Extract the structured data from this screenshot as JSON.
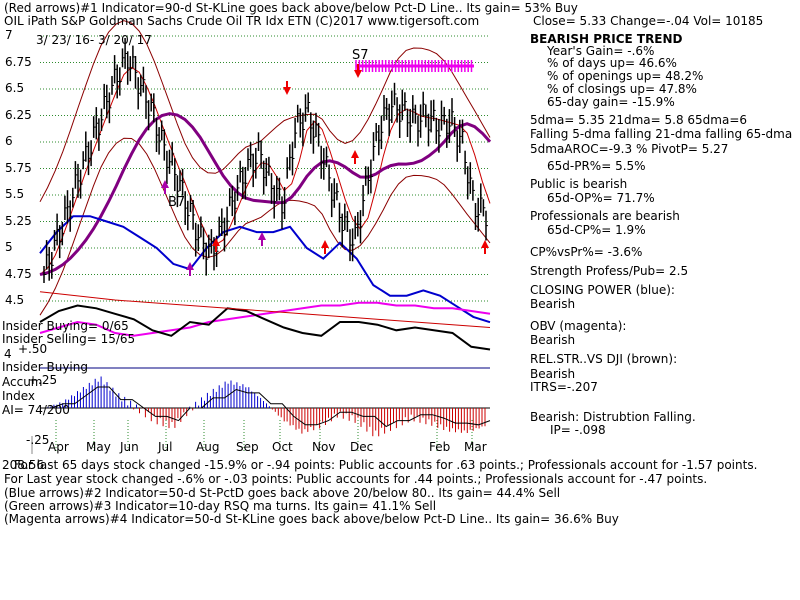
{
  "header": {
    "line1": "(Red arrows)#1 Indicator=90-d St-KLine goes back above/below Pct-D Line.. Its gain= 53% Buy",
    "line2_left": "OIL    iPath S&P Goldman Sachs Crude Oil TR Idx ETN  (C)2017 www.tigersoft.com",
    "line2_right": "Close=  5.33  Change=-.04 Vol= 10185",
    "date_range": "3/ 23/ 16-  3/ 20/ 17"
  },
  "chart_data": {
    "type": "line",
    "title": "OIL    iPath S&P Goldman Sachs Crude Oil TR Idx ETN",
    "ylim": [
      4.3,
      7.05
    ],
    "y_ticks": [
      {
        "label": "7",
        "value": 7.0
      },
      {
        "label": "6.75",
        "value": 6.75
      },
      {
        "label": "6.5",
        "value": 6.5
      },
      {
        "label": "6.25",
        "value": 6.25
      },
      {
        "label": "6",
        "value": 6.0
      },
      {
        "label": "5.75",
        "value": 5.75
      },
      {
        "label": "5.5",
        "value": 5.5
      },
      {
        "label": "5.25",
        "value": 5.25
      },
      {
        "label": "5",
        "value": 5.0
      },
      {
        "label": "4.75",
        "value": 4.75
      },
      {
        "label": "4.5",
        "value": 4.5
      }
    ],
    "x_labels": [
      "Apr",
      "May",
      "Jun",
      "Jul",
      "Aug",
      "Sep",
      "Oct",
      "Nov",
      "Dec",
      "Feb",
      "Mar"
    ],
    "close_series": [
      4.75,
      5.05,
      5.35,
      5.7,
      6.0,
      6.3,
      6.6,
      6.8,
      6.55,
      6.3,
      5.95,
      5.7,
      5.4,
      5.1,
      4.95,
      5.2,
      5.5,
      5.75,
      5.9,
      5.6,
      5.4,
      6.1,
      6.3,
      6.0,
      5.6,
      5.25,
      5.05,
      5.6,
      6.1,
      6.35,
      6.3,
      6.2,
      6.25,
      6.15,
      6.2,
      6.0,
      5.4,
      5.33
    ],
    "closing_power": [
      4.95,
      5.15,
      5.3,
      5.3,
      5.25,
      5.2,
      5.1,
      5.0,
      4.85,
      4.8,
      5.0,
      5.15,
      5.2,
      5.15,
      5.15,
      5.2,
      5.0,
      4.9,
      5.05,
      4.9,
      4.65,
      4.55,
      4.55,
      4.6,
      4.55,
      4.45,
      4.35,
      4.3
    ],
    "obv": [
      4.0,
      4.1,
      4.2,
      4.15,
      4.0,
      3.95,
      4.0,
      4.05,
      4.1,
      4.2,
      4.25,
      4.3,
      4.35,
      4.4,
      4.45,
      4.5,
      4.5,
      4.55,
      4.55,
      4.5,
      4.5,
      4.45,
      4.45,
      4.4,
      4.35
    ],
    "relative_strength": [
      4.2,
      4.4,
      4.5,
      4.45,
      4.35,
      4.25,
      4.05,
      3.95,
      4.2,
      4.15,
      4.45,
      4.4,
      4.25,
      4.1,
      4.0,
      3.95,
      4.2,
      4.2,
      4.15,
      4.05,
      4.1,
      4.05,
      4.0,
      3.75,
      3.7
    ],
    "accumulation_index": [
      0.0,
      0.05,
      0.15,
      0.25,
      0.1,
      0.0,
      -0.1,
      -0.15,
      0.0,
      0.12,
      0.22,
      0.18,
      0.05,
      -0.1,
      -0.2,
      -0.15,
      -0.05,
      -0.1,
      -0.22,
      -0.15,
      -0.08,
      -0.12,
      -0.18,
      -0.2,
      -0.15
    ],
    "labels": {
      "s7": "S7",
      "b7": "B7"
    },
    "colors": {
      "price": "#000000",
      "bands": "#8b0000",
      "ma65": "#800080",
      "closing_power": "#0000cd",
      "obv": "#ee00ee",
      "relstr": "#000000",
      "accum_pos": "#0000cd",
      "accum_neg": "#cc0000",
      "s7_bar": "#ee00ee",
      "red_arrow": "#ee0000"
    }
  },
  "indicator_labels": {
    "insider_buying_count": "Insider Buying= 0/65",
    "insider_selling": "Insider Selling= 15/65",
    "plus50": "+.50",
    "four": "4",
    "insider_buying": "Insider Buying",
    "accum": "Accum",
    "accum_val": "+.25",
    "index": "Index",
    "ai": "AI= 74/200",
    "minus25": "-.25"
  },
  "right_panel": {
    "trend": "BEARISH PRICE TREND",
    "years_gain": "Year's Gain= -.6%",
    "days_up": "% of days up= 46.6%",
    "openings_up": "% of openings up= 48.2%",
    "closings_up": "% of closings up= 47.8%",
    "gain_65": "65-day gain= -15.9%",
    "dma": "5dma= 5.35 21dma= 5.8 65dma=6",
    "falling": "Falling 5-dma falling 21-dma falling 65-dma",
    "aroc": "5dmaAROC=-9.3 %  PivotP= 5.27",
    "pr": "65d-PR%= 5.5%",
    "public": "Public is bearish",
    "op": "65d-OP%= 71.7%",
    "professionals": "Professionals are bearish",
    "cp": "65d-CP%= 1.9%",
    "cpvspr": "CP%vsPr%= -3.6%",
    "strength": "Strength Profess/Pub= 2.5",
    "closing_power_title": "CLOSING POWER (blue):",
    "closing_power_val": "Bearish",
    "obv_title": "OBV (magenta):",
    "obv_val": "Bearish",
    "relstr_title": "REL.STR..VS DJI (brown):",
    "relstr_val": "Bearish",
    "itrs": "ITRS=-.207",
    "distribution": "Bearish: Distrubtion Falling.",
    "ip": "IP= -.098"
  },
  "footer": {
    "line1_prefix": "208.56",
    "line1": "For last 65 days stock changed -15.9% or -.94 points:  Public accounts for  .63 points.;  Professionals account for -1.57 points.",
    "line2": "For Last year stock changed -.6% or -.03 points:  Public accounts for  .44 points.;  Professionals account for -.47 points.",
    "line3": "(Blue arrows)#2 Indicator=50-d St-PctD goes back above 20/below 80.. Its gain= 44.4% Sell",
    "line4": "(Green arrows)#3 Indicator=10-day RSQ ma turns. Its gain= 41.1% Sell",
    "line5": "(Magenta arrows)#4 Indicator=50-d St-KLine goes back above/below Pct-D Line.. Its gain= 36.6% Buy"
  }
}
